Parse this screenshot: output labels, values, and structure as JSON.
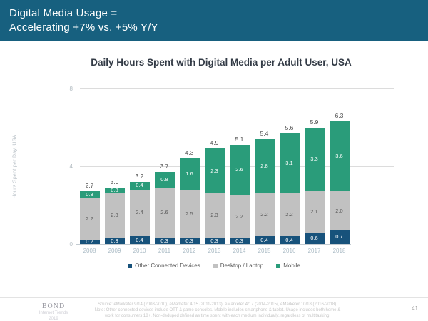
{
  "header": {
    "line1": "Digital Media Usage =",
    "line2": "Accelerating +7% vs. +5% Y/Y"
  },
  "chart_data": {
    "type": "bar",
    "stacked": true,
    "title": "Daily Hours Spent with Digital Media per Adult User, USA",
    "xlabel": "",
    "ylabel": "Hours Spent per Day, USA",
    "ylim": [
      0,
      8
    ],
    "yticks": [
      0,
      4,
      8
    ],
    "grid": "horizontal",
    "legend_position": "bottom",
    "categories": [
      "2008",
      "2009",
      "2010",
      "2011",
      "2012",
      "2013",
      "2014",
      "2015",
      "2016",
      "2017",
      "2018"
    ],
    "totals": [
      "2.7",
      "3.0",
      "3.2",
      "3.7",
      "4.3",
      "4.9",
      "5.1",
      "5.4",
      "5.6",
      "5.9",
      "6.3"
    ],
    "series": [
      {
        "name": "Other Connected Devices",
        "color": "#17527b",
        "label_color": "#ffffff",
        "values": [
          "0.2",
          "0.3",
          "0.4",
          "0.3",
          "0.3",
          "0.3",
          "0.3",
          "0.4",
          "0.4",
          "0.6",
          "0.7"
        ]
      },
      {
        "name": "Desktop / Laptop",
        "color": "#c1c1c1",
        "label_color": "#595959",
        "values": [
          "2.2",
          "2.3",
          "2.4",
          "2.6",
          "2.5",
          "2.3",
          "2.2",
          "2.2",
          "2.2",
          "2.1",
          "2.0"
        ]
      },
      {
        "name": "Mobile",
        "color": "#2a9c7a",
        "label_color": "#ffffff",
        "values": [
          "0.3",
          "0.3",
          "0.4",
          "0.8",
          "1.6",
          "2.3",
          "2.6",
          "2.8",
          "3.1",
          "3.3",
          "3.6"
        ]
      }
    ]
  },
  "footer": {
    "source_line1": "Source: eMarketer 9/14 (2008-2010), eMarketer 4/15 (2011-2013), eMarketer 4/17 (2014-2015), eMarketer 10/18 (2016-2018).",
    "source_line2": "Note: Other connected devices include OTT & game consoles. Mobile includes smartphone & tablet. Usage includes both home &",
    "source_line3": "work for consumers 18+. Non-deduped defined as time spent with each medium individually, regardless of multitasking.",
    "brand": {
      "name": "BOND",
      "subtitle": "Internet Trends",
      "year": "2019"
    },
    "page_number": "41"
  }
}
